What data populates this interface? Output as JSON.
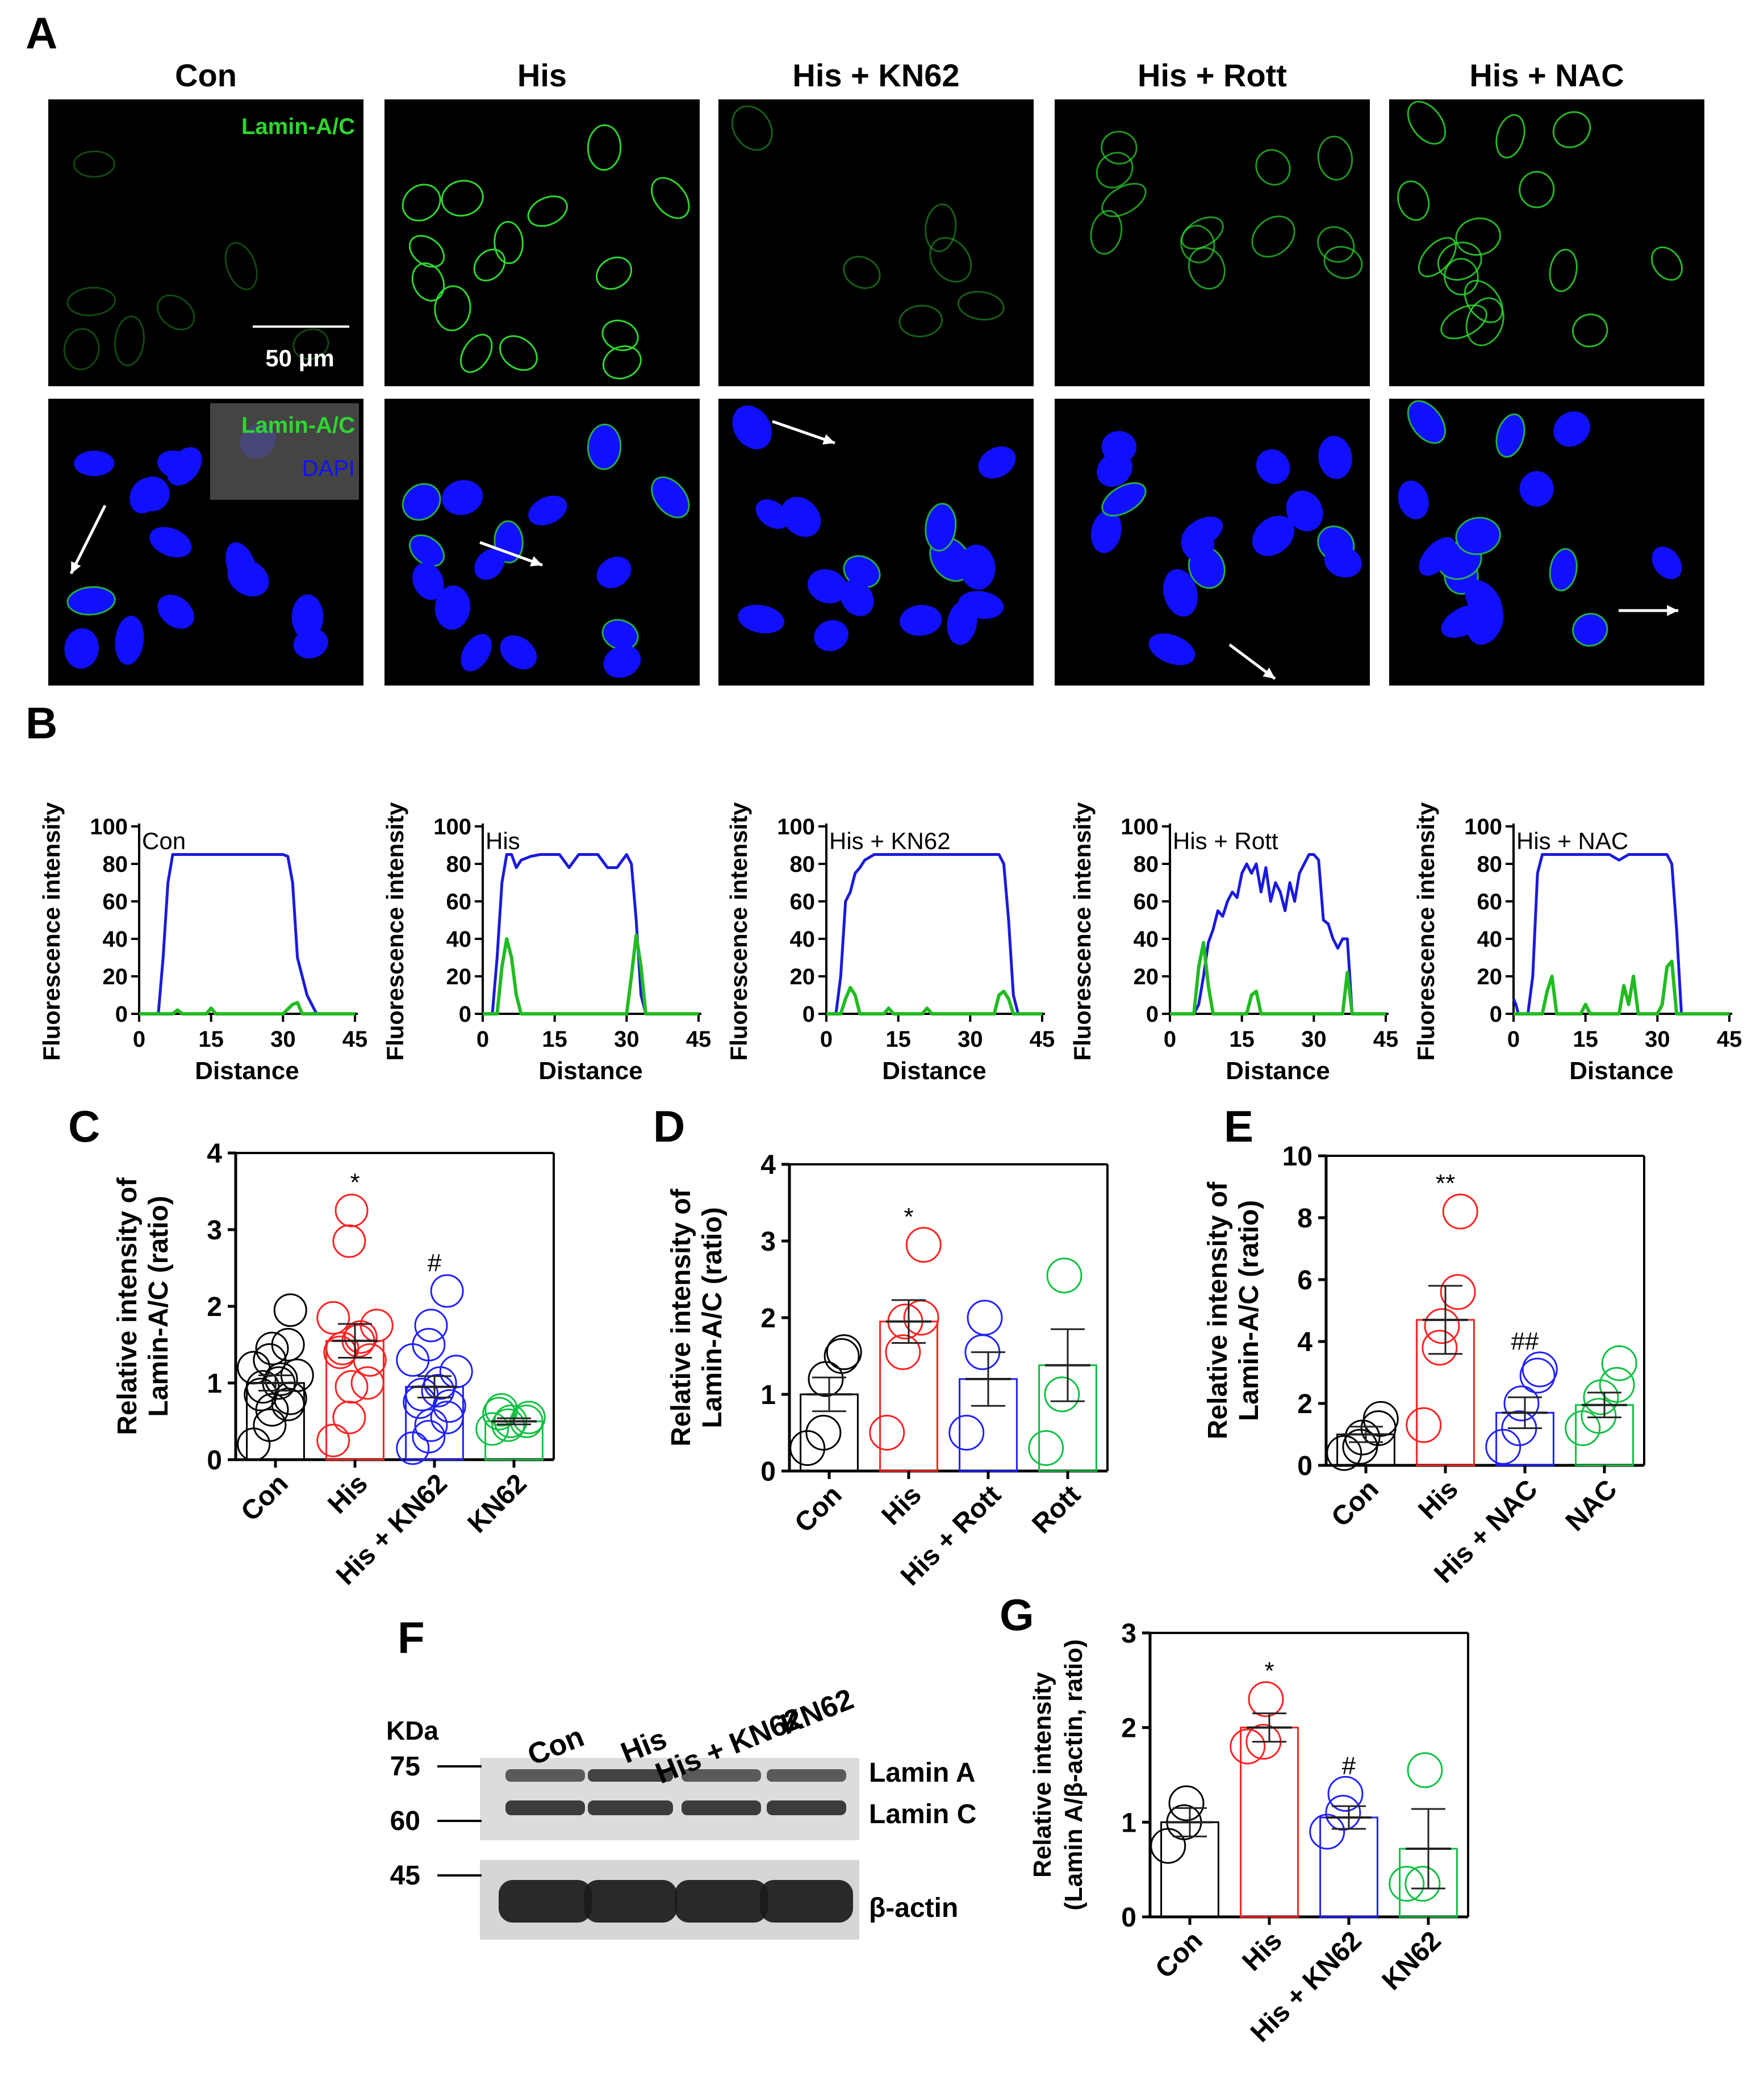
{
  "panel_labels": {
    "A": "A",
    "B": "B",
    "C": "C",
    "D": "D",
    "E": "E",
    "F": "F",
    "G": "G"
  },
  "panel_a": {
    "columns": [
      "Con",
      "His",
      "His + KN62",
      "His + Rott",
      "His + NAC"
    ],
    "channel_label_green": "Lamin-A/C",
    "channel_label_blue": "DAPI",
    "scale_bar": "50 μm",
    "colors": {
      "lamin": "#2fd52f",
      "dapi": "#1010ff",
      "background": "#000000"
    }
  },
  "chart_data": [
    {
      "panel": "B",
      "type": "line",
      "title": "Con",
      "xlabel": "Distance",
      "ylabel": "Fluorescence intensity",
      "xlim": [
        0,
        45
      ],
      "ylim": [
        0,
        100
      ],
      "xticks": [
        "0",
        "15",
        "30",
        "45"
      ],
      "yticks": [
        "0",
        "20",
        "40",
        "60",
        "80",
        "100"
      ],
      "series": [
        {
          "color": "#1a1adc",
          "x": [
            0,
            4,
            5,
            6,
            7,
            10,
            15,
            20,
            25,
            30,
            31,
            32,
            33,
            35,
            37,
            45
          ],
          "y": [
            0,
            0,
            30,
            70,
            85,
            85,
            85,
            85,
            85,
            85,
            84,
            70,
            30,
            10,
            0,
            0
          ]
        },
        {
          "color": "#22bb22",
          "x": [
            0,
            7,
            8,
            9,
            14,
            15,
            16,
            30,
            32,
            33,
            34,
            45
          ],
          "y": [
            0,
            0,
            2,
            0,
            0,
            3,
            0,
            0,
            5,
            6,
            0,
            0
          ]
        }
      ]
    },
    {
      "panel": "B",
      "type": "line",
      "title": "His",
      "xlabel": "Distance",
      "ylabel": "Fluorescence intensity",
      "xlim": [
        0,
        45
      ],
      "ylim": [
        0,
        100
      ],
      "xticks": [
        "0",
        "15",
        "30",
        "45"
      ],
      "yticks": [
        "0",
        "20",
        "40",
        "60",
        "80",
        "100"
      ],
      "series": [
        {
          "color": "#1a1adc",
          "x": [
            0,
            2,
            3,
            4,
            5,
            6,
            7,
            8,
            10,
            12,
            14,
            16,
            18,
            20,
            22,
            24,
            26,
            28,
            30,
            31,
            32,
            33,
            34,
            35,
            45
          ],
          "y": [
            0,
            0,
            30,
            70,
            85,
            85,
            78,
            82,
            84,
            85,
            85,
            85,
            78,
            85,
            85,
            85,
            78,
            78,
            85,
            80,
            50,
            10,
            0,
            0,
            0
          ]
        },
        {
          "color": "#22bb22",
          "x": [
            0,
            3,
            4,
            5,
            6,
            7,
            8,
            28,
            30,
            31,
            32,
            33,
            34,
            45
          ],
          "y": [
            0,
            0,
            25,
            40,
            30,
            10,
            0,
            0,
            0,
            20,
            42,
            25,
            0,
            0
          ]
        }
      ]
    },
    {
      "panel": "B",
      "type": "line",
      "title": "His + KN62",
      "xlabel": "Distance",
      "ylabel": "Fluorescence intensity",
      "xlim": [
        0,
        45
      ],
      "ylim": [
        0,
        100
      ],
      "xticks": [
        "0",
        "15",
        "30",
        "45"
      ],
      "yticks": [
        "0",
        "20",
        "40",
        "60",
        "80",
        "100"
      ],
      "series": [
        {
          "color": "#1a1adc",
          "x": [
            0,
            2,
            3,
            4,
            5,
            6,
            7,
            8,
            10,
            12,
            15,
            20,
            25,
            30,
            36,
            37,
            38,
            39,
            40,
            41,
            45
          ],
          "y": [
            0,
            0,
            20,
            60,
            65,
            75,
            78,
            82,
            85,
            85,
            85,
            85,
            85,
            85,
            85,
            80,
            50,
            10,
            0,
            0,
            0
          ]
        },
        {
          "color": "#22bb22",
          "x": [
            0,
            3,
            4,
            5,
            6,
            7,
            12,
            13,
            14,
            20,
            21,
            22,
            35,
            36,
            37,
            38,
            39,
            40,
            45
          ],
          "y": [
            0,
            0,
            8,
            14,
            10,
            0,
            0,
            3,
            0,
            0,
            3,
            0,
            0,
            10,
            12,
            8,
            0,
            0,
            0
          ]
        }
      ]
    },
    {
      "panel": "B",
      "type": "line",
      "title": "His + Rott",
      "xlabel": "Distance",
      "ylabel": "Fluorescence intensity",
      "xlim": [
        0,
        45
      ],
      "ylim": [
        0,
        100
      ],
      "xticks": [
        "0",
        "15",
        "30",
        "45"
      ],
      "yticks": [
        "0",
        "20",
        "40",
        "60",
        "80",
        "100"
      ],
      "series": [
        {
          "color": "#1a1adc",
          "x": [
            0,
            5,
            6,
            7,
            8,
            9,
            10,
            11,
            12,
            13,
            14,
            15,
            16,
            17,
            18,
            19,
            20,
            21,
            22,
            23,
            24,
            25,
            26,
            27,
            28,
            29,
            30,
            31,
            32,
            33,
            34,
            35,
            36,
            37,
            38,
            45
          ],
          "y": [
            0,
            0,
            5,
            20,
            38,
            45,
            55,
            52,
            60,
            65,
            62,
            75,
            80,
            75,
            80,
            65,
            78,
            60,
            70,
            65,
            55,
            70,
            60,
            75,
            80,
            85,
            85,
            82,
            50,
            48,
            40,
            35,
            40,
            40,
            0,
            0
          ]
        },
        {
          "color": "#22bb22",
          "x": [
            0,
            5,
            6,
            7,
            8,
            9,
            16,
            17,
            18,
            19,
            36,
            37,
            38,
            45
          ],
          "y": [
            0,
            0,
            25,
            38,
            15,
            0,
            0,
            10,
            12,
            0,
            0,
            22,
            0,
            0
          ]
        }
      ]
    },
    {
      "panel": "B",
      "type": "line",
      "title": "His + NAC",
      "xlabel": "Distance",
      "ylabel": "Fluorescence intensity",
      "xlim": [
        0,
        45
      ],
      "ylim": [
        0,
        100
      ],
      "xticks": [
        "0",
        "15",
        "30",
        "45"
      ],
      "yticks": [
        "0",
        "20",
        "40",
        "60",
        "80",
        "100"
      ],
      "series": [
        {
          "color": "#1a1adc",
          "x": [
            0,
            0.5,
            1,
            3,
            4,
            5,
            6,
            8,
            12,
            16,
            20,
            22,
            24,
            26,
            30,
            32,
            33,
            34,
            35,
            36,
            45
          ],
          "y": [
            8,
            5,
            0,
            0,
            20,
            75,
            85,
            85,
            85,
            85,
            85,
            82,
            85,
            85,
            85,
            85,
            80,
            45,
            0,
            0,
            0
          ]
        },
        {
          "color": "#22bb22",
          "x": [
            0,
            1,
            6,
            7,
            8,
            9,
            14,
            15,
            16,
            22,
            23,
            24,
            25,
            26,
            30,
            31,
            32,
            33,
            34,
            45
          ],
          "y": [
            0,
            0,
            0,
            12,
            20,
            0,
            0,
            5,
            0,
            0,
            15,
            5,
            20,
            0,
            0,
            5,
            25,
            28,
            0,
            0
          ]
        }
      ]
    },
    {
      "panel": "C",
      "type": "bar",
      "ylabel": "Relative intensity of Lamin-A/C (ratio)",
      "categories": [
        "Con",
        "His",
        "His + KN62",
        "KN62"
      ],
      "ylim": [
        0,
        4
      ],
      "yticks": [
        "0",
        "1",
        "2",
        "3",
        "4"
      ],
      "colors": [
        "#000000",
        "#ff2020",
        "#2020ff",
        "#10c040"
      ],
      "values": [
        1.0,
        1.55,
        0.95,
        0.5
      ],
      "errors": [
        0.1,
        0.22,
        0.14,
        0.04
      ],
      "significance": [
        "",
        "*",
        "#",
        ""
      ],
      "points": [
        [
          0.2,
          0.45,
          0.65,
          0.72,
          0.8,
          0.85,
          0.95,
          1.0,
          1.05,
          1.1,
          1.2,
          1.3,
          1.45,
          1.5,
          1.95
        ],
        [
          0.25,
          0.55,
          0.95,
          1.0,
          1.3,
          1.4,
          1.45,
          1.55,
          1.6,
          1.75,
          1.85,
          2.85,
          3.25
        ],
        [
          0.15,
          0.3,
          0.45,
          0.55,
          0.7,
          0.75,
          0.85,
          0.9,
          1.0,
          1.15,
          1.3,
          1.5,
          1.75,
          2.2
        ],
        [
          0.4,
          0.45,
          0.5,
          0.5,
          0.55,
          0.6,
          0.65
        ]
      ]
    },
    {
      "panel": "D",
      "type": "bar",
      "ylabel": "Relative intensity of Lamin-A/C (ratio)",
      "categories": [
        "Con",
        "His",
        "His + Rott",
        "Rott"
      ],
      "ylim": [
        0,
        4
      ],
      "yticks": [
        "0",
        "1",
        "2",
        "3",
        "4"
      ],
      "colors": [
        "#000000",
        "#ff2020",
        "#2020ff",
        "#10c040"
      ],
      "values": [
        1.0,
        1.95,
        1.2,
        1.38
      ],
      "errors": [
        0.22,
        0.28,
        0.35,
        0.47
      ],
      "significance": [
        "",
        "*",
        "",
        ""
      ],
      "points": [
        [
          0.3,
          0.5,
          1.2,
          1.5,
          1.55
        ],
        [
          0.5,
          1.55,
          1.95,
          2.0,
          2.95
        ],
        [
          0.5,
          1.55,
          2.0
        ],
        [
          0.3,
          1.0,
          2.55
        ]
      ]
    },
    {
      "panel": "E",
      "type": "bar",
      "ylabel": "Relative intensity of Lamin-A/C (ratio)",
      "categories": [
        "Con",
        "His",
        "His + NAC",
        "NAC"
      ],
      "ylim": [
        0,
        10
      ],
      "yticks": [
        "0",
        "2",
        "4",
        "6",
        "8",
        "10"
      ],
      "colors": [
        "#000000",
        "#ff2020",
        "#2020ff",
        "#10c040"
      ],
      "values": [
        1.0,
        4.7,
        1.7,
        1.95
      ],
      "errors": [
        0.25,
        1.1,
        0.5,
        0.4
      ],
      "significance": [
        "",
        "**",
        "##",
        ""
      ],
      "points": [
        [
          0.4,
          0.6,
          0.9,
          1.2,
          1.5
        ],
        [
          1.3,
          3.8,
          4.5,
          5.6,
          8.2
        ],
        [
          0.6,
          1.2,
          2.0,
          2.9,
          3.1
        ],
        [
          1.2,
          1.6,
          2.2,
          2.6,
          3.3
        ]
      ]
    },
    {
      "panel": "G",
      "type": "bar",
      "ylabel": "Relative intensity (Lamin A/β-actin, ratio)",
      "categories": [
        "Con",
        "His",
        "His + KN62",
        "KN62"
      ],
      "ylim": [
        0,
        3
      ],
      "yticks": [
        "0",
        "1",
        "2",
        "3"
      ],
      "colors": [
        "#000000",
        "#ff2020",
        "#2020ff",
        "#10c040"
      ],
      "values": [
        1.0,
        2.0,
        1.05,
        0.72
      ],
      "errors": [
        0.15,
        0.15,
        0.12,
        0.42
      ],
      "significance": [
        "",
        "*",
        "#",
        ""
      ],
      "points": [
        [
          0.75,
          1.0,
          1.2
        ],
        [
          1.8,
          1.85,
          2.3
        ],
        [
          0.9,
          1.1,
          1.3
        ],
        [
          0.35,
          0.35,
          1.55
        ]
      ]
    }
  ],
  "panel_f": {
    "kda_label": "KDa",
    "markers": [
      "75",
      "60",
      "45"
    ],
    "lanes": [
      "Con",
      "His",
      "His + KN62",
      "KN62"
    ],
    "bands": [
      "Lamin A",
      "Lamin C",
      "β-actin"
    ]
  }
}
